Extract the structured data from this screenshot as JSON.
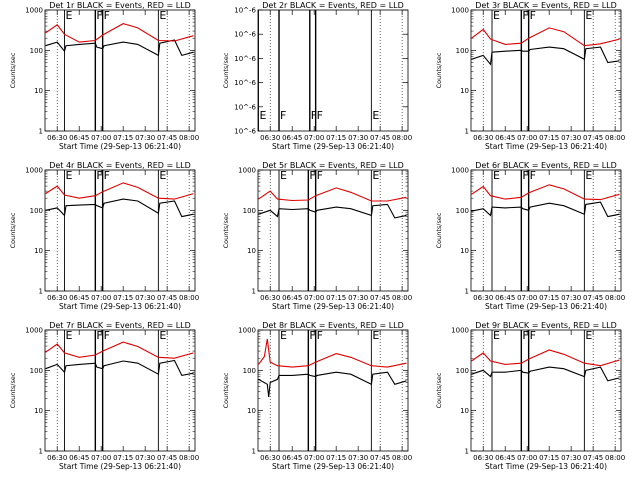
{
  "chart_data": [
    {
      "type": "line",
      "title": "Det 1r BLACK = Events, RED = LLD",
      "xlabel": "Start Time (29-Sep-13 06:21:40)",
      "ylabel": "Counts/sec",
      "yscale": "log",
      "ylim": [
        1,
        1000
      ],
      "ytick_labels": [
        "1000",
        "100",
        "10",
        "1"
      ],
      "xtick_labels": [
        "06:30",
        "06:45",
        "07:00",
        "07:15",
        "07:30",
        "07:45",
        "08:00"
      ],
      "xlim": [
        "06:21:40",
        "08:04:00"
      ],
      "flags": [
        {
          "label": "E",
          "time": "06:35"
        },
        {
          "label": "F",
          "time": "06:56"
        },
        {
          "label": "F",
          "time": "07:01"
        },
        {
          "label": "E",
          "time": "07:39"
        }
      ],
      "series": [
        {
          "name": "Events",
          "color": "#000000",
          "x": [
            "06:22",
            "06:30",
            "06:35",
            "06:36",
            "06:45",
            "06:56",
            "06:57",
            "07:01",
            "07:02",
            "07:15",
            "07:25",
            "07:39",
            "07:40",
            "07:50",
            "07:55",
            "08:03"
          ],
          "values": [
            130,
            160,
            95,
            130,
            140,
            150,
            120,
            110,
            130,
            160,
            140,
            75,
            150,
            180,
            75,
            90
          ]
        },
        {
          "name": "LLD",
          "color": "#e00000",
          "x": [
            "06:22",
            "06:30",
            "06:35",
            "06:45",
            "06:56",
            "07:01",
            "07:15",
            "07:25",
            "07:39",
            "07:50",
            "08:03"
          ],
          "values": [
            270,
            430,
            250,
            160,
            175,
            240,
            460,
            360,
            175,
            170,
            230
          ]
        }
      ]
    },
    {
      "type": "line",
      "title": "Det 2r BLACK = Events, RED = LLD",
      "xlabel": "Start Time (29-Sep-13 06:21:40)",
      "ylabel": "Counts/sec",
      "yscale": "log",
      "ylim": [
        1e-06,
        1.5e-06
      ],
      "ytick_labels": [
        "10^-6",
        "10^-6",
        "10^-6",
        "10^-6",
        "10^-6",
        "10^-6"
      ],
      "xtick_labels": [
        "06:30",
        "06:45",
        "07:00",
        "07:15",
        "07:30",
        "07:45",
        "08:00"
      ],
      "xlim": [
        "06:21:40",
        "08:04:00"
      ],
      "flags": [
        {
          "label": "E",
          "time": "06:22"
        },
        {
          "label": "F",
          "time": "06:36"
        },
        {
          "label": "F",
          "time": "06:57"
        },
        {
          "label": "F",
          "time": "07:01"
        },
        {
          "label": "E",
          "time": "07:39"
        }
      ],
      "series": []
    },
    {
      "type": "line",
      "title": "Det 3r BLACK = Events, RED = LLD",
      "xlabel": "Start Time (29-Sep-13 06:21:40)",
      "ylabel": "Counts/sec",
      "yscale": "log",
      "ylim": [
        1,
        1000
      ],
      "ytick_labels": [
        "1000",
        "100",
        "10",
        "1"
      ],
      "xtick_labels": [
        "06:30",
        "06:45",
        "07:00",
        "07:15",
        "07:30",
        "07:45",
        "08:00"
      ],
      "xlim": [
        "06:21:40",
        "08:04:00"
      ],
      "flags": [
        {
          "label": "E",
          "time": "06:36"
        },
        {
          "label": "F",
          "time": "06:56"
        },
        {
          "label": "F",
          "time": "07:01"
        },
        {
          "label": "E",
          "time": "07:39"
        }
      ],
      "series": [
        {
          "name": "Events",
          "color": "#000000",
          "x": [
            "06:22",
            "06:30",
            "06:35",
            "06:36",
            "06:45",
            "06:56",
            "06:57",
            "07:01",
            "07:02",
            "07:15",
            "07:25",
            "07:39",
            "07:40",
            "07:50",
            "07:55",
            "08:03"
          ],
          "values": [
            60,
            75,
            45,
            90,
            95,
            100,
            95,
            95,
            105,
            120,
            110,
            60,
            110,
            120,
            50,
            55
          ]
        },
        {
          "name": "LLD",
          "color": "#e00000",
          "x": [
            "06:22",
            "06:30",
            "06:35",
            "06:45",
            "06:56",
            "07:01",
            "07:15",
            "07:25",
            "07:39",
            "07:50",
            "08:03"
          ],
          "values": [
            200,
            330,
            190,
            140,
            150,
            200,
            360,
            290,
            130,
            145,
            190
          ]
        }
      ]
    },
    {
      "type": "line",
      "title": "Det 4r BLACK = Events, RED = LLD",
      "xlabel": "Start Time (29-Sep-13 06:21:40)",
      "ylabel": "Counts/sec",
      "yscale": "log",
      "ylim": [
        1,
        1000
      ],
      "ytick_labels": [
        "1000",
        "100",
        "10",
        "1"
      ],
      "xtick_labels": [
        "06:30",
        "06:45",
        "07:00",
        "07:15",
        "07:30",
        "07:45",
        "08:00"
      ],
      "xlim": [
        "06:21:40",
        "08:04:00"
      ],
      "flags": [
        {
          "label": "E",
          "time": "06:35"
        },
        {
          "label": "F",
          "time": "06:56"
        },
        {
          "label": "F",
          "time": "07:01"
        },
        {
          "label": "E",
          "time": "07:39"
        }
      ],
      "series": [
        {
          "name": "Events",
          "color": "#000000",
          "x": [
            "06:22",
            "06:30",
            "06:35",
            "06:36",
            "06:45",
            "06:56",
            "06:57",
            "07:01",
            "07:02",
            "07:15",
            "07:25",
            "07:39",
            "07:40",
            "07:50",
            "07:55",
            "08:03"
          ],
          "values": [
            100,
            115,
            75,
            130,
            135,
            140,
            130,
            115,
            150,
            190,
            170,
            85,
            150,
            170,
            70,
            80
          ]
        },
        {
          "name": "LLD",
          "color": "#e00000",
          "x": [
            "06:22",
            "06:30",
            "06:35",
            "06:45",
            "06:56",
            "07:01",
            "07:15",
            "07:25",
            "07:39",
            "07:50",
            "08:03"
          ],
          "values": [
            260,
            400,
            240,
            200,
            230,
            290,
            480,
            370,
            200,
            190,
            260
          ]
        }
      ]
    },
    {
      "type": "line",
      "title": "Det 5r BLACK = Events, RED = LLD",
      "xlabel": "Start Time (29-Sep-13 06:21:40)",
      "ylabel": "Counts/sec",
      "yscale": "log",
      "ylim": [
        1,
        1000
      ],
      "ytick_labels": [
        "1000",
        "100",
        "10",
        "1"
      ],
      "xtick_labels": [
        "06:30",
        "06:45",
        "07:00",
        "07:15",
        "07:30",
        "07:45",
        "08:00"
      ],
      "xlim": [
        "06:21:40",
        "08:04:00"
      ],
      "flags": [
        {
          "label": "E",
          "time": "06:36"
        },
        {
          "label": "F",
          "time": "06:56"
        },
        {
          "label": "F",
          "time": "07:01"
        },
        {
          "label": "E",
          "time": "07:39"
        }
      ],
      "series": [
        {
          "name": "Events",
          "color": "#000000",
          "x": [
            "06:22",
            "06:30",
            "06:35",
            "06:36",
            "06:45",
            "06:56",
            "06:57",
            "07:01",
            "07:02",
            "07:15",
            "07:25",
            "07:39",
            "07:40",
            "07:50",
            "07:55",
            "08:03"
          ],
          "values": [
            80,
            100,
            70,
            110,
            105,
            110,
            100,
            90,
            100,
            120,
            110,
            75,
            130,
            140,
            65,
            75
          ]
        },
        {
          "name": "LLD",
          "color": "#e00000",
          "x": [
            "06:22",
            "06:30",
            "06:35",
            "06:45",
            "06:56",
            "07:01",
            "07:15",
            "07:25",
            "07:39",
            "07:50",
            "08:03"
          ],
          "values": [
            190,
            300,
            190,
            175,
            180,
            230,
            360,
            280,
            170,
            170,
            210
          ]
        }
      ]
    },
    {
      "type": "line",
      "title": "Det 6r BLACK = Events, RED = LLD",
      "xlabel": "Start Time (29-Sep-13 06:21:40)",
      "ylabel": "Counts/sec",
      "yscale": "log",
      "ylim": [
        1,
        1000
      ],
      "ytick_labels": [
        "1000",
        "100",
        "10",
        "1"
      ],
      "xtick_labels": [
        "06:30",
        "06:45",
        "07:00",
        "07:15",
        "07:30",
        "07:45",
        "08:00"
      ],
      "xlim": [
        "06:21:40",
        "08:04:00"
      ],
      "flags": [
        {
          "label": "E",
          "time": "06:36"
        },
        {
          "label": "F",
          "time": "06:56"
        },
        {
          "label": "F",
          "time": "07:01"
        },
        {
          "label": "E",
          "time": "07:39"
        }
      ],
      "series": [
        {
          "name": "Events",
          "color": "#000000",
          "x": [
            "06:22",
            "06:30",
            "06:35",
            "06:36",
            "06:45",
            "06:56",
            "06:57",
            "07:01",
            "07:02",
            "07:15",
            "07:25",
            "07:39",
            "07:40",
            "07:50",
            "07:55",
            "08:03"
          ],
          "values": [
            95,
            110,
            75,
            120,
            115,
            120,
            110,
            100,
            120,
            150,
            130,
            80,
            140,
            160,
            70,
            80
          ]
        },
        {
          "name": "LLD",
          "color": "#e00000",
          "x": [
            "06:22",
            "06:30",
            "06:35",
            "06:45",
            "06:56",
            "07:01",
            "07:15",
            "07:25",
            "07:39",
            "07:50",
            "08:03"
          ],
          "values": [
            250,
            390,
            230,
            190,
            210,
            270,
            430,
            340,
            190,
            185,
            250
          ]
        }
      ]
    },
    {
      "type": "line",
      "title": "Det 7r BLACK = Events, RED = LLD",
      "xlabel": "Start Time (29-Sep-13 06:21:40)",
      "ylabel": "Counts/sec",
      "yscale": "log",
      "ylim": [
        1,
        1000
      ],
      "ytick_labels": [
        "1000",
        "100",
        "10",
        "1"
      ],
      "xtick_labels": [
        "06:30",
        "06:45",
        "07:00",
        "07:15",
        "07:30",
        "07:45",
        "08:00"
      ],
      "xlim": [
        "06:21:40",
        "08:04:00"
      ],
      "flags": [
        {
          "label": "E",
          "time": "06:35"
        },
        {
          "label": "F",
          "time": "06:56"
        },
        {
          "label": "F",
          "time": "07:01"
        },
        {
          "label": "E",
          "time": "07:39"
        }
      ],
      "series": [
        {
          "name": "Events",
          "color": "#000000",
          "x": [
            "06:22",
            "06:30",
            "06:35",
            "06:36",
            "06:45",
            "06:56",
            "06:57",
            "07:01",
            "07:02",
            "07:15",
            "07:25",
            "07:39",
            "07:40",
            "07:50",
            "07:55",
            "08:03"
          ],
          "values": [
            110,
            140,
            90,
            130,
            140,
            150,
            120,
            110,
            130,
            170,
            150,
            80,
            150,
            175,
            75,
            85
          ]
        },
        {
          "name": "LLD",
          "color": "#e00000",
          "x": [
            "06:22",
            "06:30",
            "06:35",
            "06:45",
            "06:56",
            "07:01",
            "07:15",
            "07:25",
            "07:39",
            "07:50",
            "08:03"
          ],
          "values": [
            280,
            450,
            270,
            210,
            240,
            300,
            500,
            390,
            210,
            200,
            270
          ]
        }
      ]
    },
    {
      "type": "line",
      "title": "Det 8r BLACK = Events, RED = LLD",
      "xlabel": "Start Time (29-Sep-13 06:21:40)",
      "ylabel": "Counts/sec",
      "yscale": "log",
      "ylim": [
        1,
        1000
      ],
      "ytick_labels": [
        "1000",
        "100",
        "10",
        "1"
      ],
      "xtick_labels": [
        "06:30",
        "06:45",
        "07:00",
        "07:15",
        "07:30",
        "07:45",
        "08:00"
      ],
      "xlim": [
        "06:21:40",
        "08:04:00"
      ],
      "flags": [
        {
          "label": "E",
          "time": "06:36"
        },
        {
          "label": "F",
          "time": "06:56"
        },
        {
          "label": "F",
          "time": "07:01"
        },
        {
          "label": "E",
          "time": "07:39"
        }
      ],
      "series": [
        {
          "name": "Events",
          "color": "#000000",
          "x": [
            "06:22",
            "06:28",
            "06:29",
            "06:30",
            "06:35",
            "06:36",
            "06:45",
            "06:56",
            "06:57",
            "07:01",
            "07:02",
            "07:15",
            "07:25",
            "07:39",
            "07:40",
            "07:50",
            "07:55",
            "08:03"
          ],
          "values": [
            60,
            45,
            22,
            50,
            60,
            75,
            75,
            80,
            75,
            70,
            75,
            90,
            80,
            45,
            80,
            90,
            45,
            55
          ]
        },
        {
          "name": "LLD",
          "color": "#e00000",
          "x": [
            "06:22",
            "06:26",
            "06:28",
            "06:30",
            "06:35",
            "06:45",
            "06:56",
            "07:01",
            "07:15",
            "07:25",
            "07:39",
            "07:50",
            "08:03"
          ],
          "values": [
            140,
            220,
            600,
            160,
            130,
            120,
            130,
            160,
            260,
            210,
            130,
            120,
            150
          ]
        }
      ]
    },
    {
      "type": "line",
      "title": "Det 9r BLACK = Events, RED = LLD",
      "xlabel": "Start Time (29-Sep-13 06:21:40)",
      "ylabel": "Counts/sec",
      "yscale": "log",
      "ylim": [
        1,
        1000
      ],
      "ytick_labels": [
        "1000",
        "100",
        "10",
        "1"
      ],
      "xtick_labels": [
        "06:30",
        "06:45",
        "07:00",
        "07:15",
        "07:30",
        "07:45",
        "08:00"
      ],
      "xlim": [
        "06:21:40",
        "08:04:00"
      ],
      "flags": [
        {
          "label": "E",
          "time": "06:36"
        },
        {
          "label": "F",
          "time": "06:56"
        },
        {
          "label": "F",
          "time": "07:01"
        },
        {
          "label": "E",
          "time": "07:39"
        }
      ],
      "series": [
        {
          "name": "Events",
          "color": "#000000",
          "x": [
            "06:22",
            "06:30",
            "06:35",
            "06:36",
            "06:45",
            "06:56",
            "06:57",
            "07:01",
            "07:02",
            "07:15",
            "07:25",
            "07:39",
            "07:40",
            "07:50",
            "07:55",
            "08:03"
          ],
          "values": [
            80,
            100,
            70,
            90,
            90,
            100,
            90,
            85,
            95,
            120,
            110,
            70,
            100,
            120,
            55,
            65
          ]
        },
        {
          "name": "LLD",
          "color": "#e00000",
          "x": [
            "06:22",
            "06:30",
            "06:35",
            "06:45",
            "06:56",
            "07:01",
            "07:15",
            "07:25",
            "07:39",
            "07:50",
            "08:03"
          ],
          "values": [
            170,
            270,
            170,
            140,
            150,
            190,
            320,
            250,
            150,
            130,
            180
          ]
        }
      ]
    }
  ]
}
